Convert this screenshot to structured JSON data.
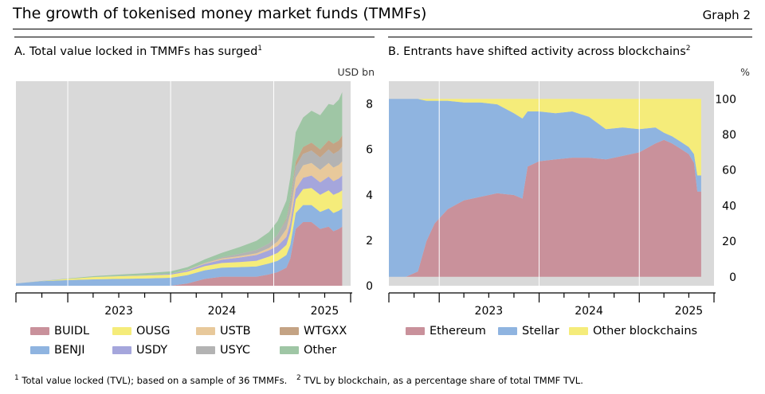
{
  "header": {
    "title": "The growth of tokenised money market funds (TMMFs)",
    "graph_label": "Graph 2"
  },
  "panel_a": {
    "title": "A. Total value locked in TMMFs has surged",
    "title_sup": "1",
    "unit": "USD bn"
  },
  "panel_b": {
    "title": "B. Entrants have shifted activity across blockchains",
    "title_sup": "2",
    "unit": "%"
  },
  "footnotes": {
    "n1_mark": "1",
    "n1_text": "Total value locked (TVL); based on a sample of 36 TMMFs.",
    "n2_mark": "2",
    "n2_text": "TVL by blockchain, as a percentage share of total TMMF TVL."
  },
  "colors": {
    "BUIDL": "#c9919b",
    "BENJI": "#8fb4e0",
    "OUSG": "#f5ec7a",
    "USDY": "#a5a6dc",
    "USTB": "#e8c99b",
    "USYC": "#b3b3b3",
    "WTGXX": "#c4a384",
    "Other": "#9fc6a5",
    "Ethereum": "#c9919b",
    "Stellar": "#8fb4e0",
    "Other blockchains": "#f5ec7a",
    "plot_bg": "#d9d9d9"
  },
  "chart_data": [
    {
      "type": "area",
      "stacked": true,
      "title": "A. Total value locked in TMMFs has surged",
      "ylabel": "USD bn",
      "ylim": [
        0,
        9
      ],
      "yticks": [
        0,
        2,
        4,
        6,
        8
      ],
      "ytick_labels": [
        "0",
        "2",
        "4",
        "6",
        "8"
      ],
      "xlim": [
        "2022-07-01",
        "2025-10-01"
      ],
      "xtick_labels": [
        "2023",
        "2024",
        "2025"
      ],
      "grid": false,
      "legend_position": "bottom",
      "x": [
        "2022-07-01",
        "2022-10-01",
        "2023-01-01",
        "2023-04-01",
        "2023-07-01",
        "2023-10-01",
        "2024-01-01",
        "2024-03-01",
        "2024-05-01",
        "2024-07-01",
        "2024-09-01",
        "2024-11-01",
        "2024-12-15",
        "2025-01-15",
        "2025-02-15",
        "2025-03-01",
        "2025-03-20",
        "2025-04-15",
        "2025-05-15",
        "2025-06-15",
        "2025-07-15",
        "2025-08-01",
        "2025-08-20",
        "2025-09-01"
      ],
      "series": [
        {
          "name": "BUIDL",
          "values": [
            0,
            0,
            0,
            0,
            0,
            0,
            0,
            0.1,
            0.3,
            0.4,
            0.4,
            0.4,
            0.5,
            0.6,
            0.8,
            1.2,
            2.5,
            2.8,
            2.8,
            2.5,
            2.6,
            2.4,
            2.5,
            2.6
          ]
        },
        {
          "name": "BENJI",
          "values": [
            0.1,
            0.2,
            0.25,
            0.28,
            0.3,
            0.32,
            0.35,
            0.37,
            0.38,
            0.4,
            0.42,
            0.45,
            0.48,
            0.5,
            0.55,
            0.6,
            0.7,
            0.75,
            0.75,
            0.75,
            0.8,
            0.8,
            0.8,
            0.8
          ]
        },
        {
          "name": "OUSG",
          "values": [
            0,
            0,
            0.05,
            0.1,
            0.12,
            0.13,
            0.14,
            0.15,
            0.18,
            0.2,
            0.22,
            0.25,
            0.3,
            0.35,
            0.45,
            0.55,
            0.6,
            0.7,
            0.75,
            0.75,
            0.8,
            0.8,
            0.8,
            0.8
          ]
        },
        {
          "name": "USDY",
          "values": [
            0,
            0,
            0,
            0,
            0.01,
            0.02,
            0.04,
            0.06,
            0.1,
            0.15,
            0.2,
            0.25,
            0.28,
            0.3,
            0.35,
            0.4,
            0.45,
            0.5,
            0.55,
            0.55,
            0.6,
            0.6,
            0.62,
            0.65
          ]
        },
        {
          "name": "USTB",
          "values": [
            0,
            0,
            0,
            0,
            0,
            0,
            0,
            0.02,
            0.03,
            0.05,
            0.06,
            0.08,
            0.1,
            0.2,
            0.35,
            0.45,
            0.5,
            0.55,
            0.55,
            0.55,
            0.6,
            0.6,
            0.6,
            0.62
          ]
        },
        {
          "name": "USYC",
          "values": [
            0,
            0,
            0,
            0,
            0,
            0,
            0,
            0,
            0.02,
            0.05,
            0.1,
            0.15,
            0.2,
            0.3,
            0.4,
            0.45,
            0.5,
            0.5,
            0.55,
            0.55,
            0.6,
            0.6,
            0.62,
            0.65
          ]
        },
        {
          "name": "WTGXX",
          "values": [
            0,
            0,
            0,
            0,
            0,
            0,
            0,
            0,
            0,
            0,
            0,
            0,
            0,
            0,
            0.05,
            0.1,
            0.2,
            0.3,
            0.35,
            0.35,
            0.4,
            0.45,
            0.45,
            0.5
          ]
        },
        {
          "name": "Other",
          "values": [
            0,
            0.01,
            0.02,
            0.04,
            0.06,
            0.08,
            0.1,
            0.12,
            0.15,
            0.2,
            0.3,
            0.4,
            0.5,
            0.6,
            0.8,
            1.0,
            1.3,
            1.3,
            1.4,
            1.5,
            1.6,
            1.7,
            1.8,
            1.9
          ]
        }
      ]
    },
    {
      "type": "area",
      "stacked": true,
      "title": "B. Entrants have shifted activity across blockchains",
      "ylabel": "%",
      "ylim": [
        -5,
        110
      ],
      "yticks": [
        0,
        20,
        40,
        60,
        80,
        100
      ],
      "ytick_labels": [
        "0",
        "20",
        "40",
        "60",
        "80",
        "100"
      ],
      "xlim": [
        "2022-07-01",
        "2025-10-01"
      ],
      "xtick_labels": [
        "2023",
        "2024",
        "2025"
      ],
      "grid": false,
      "legend_position": "bottom",
      "x": [
        "2022-07-01",
        "2022-09-01",
        "2022-10-15",
        "2022-11-15",
        "2022-12-15",
        "2023-02-01",
        "2023-04-01",
        "2023-06-01",
        "2023-08-01",
        "2023-10-01",
        "2023-11-01",
        "2023-11-20",
        "2024-01-01",
        "2024-03-01",
        "2024-05-01",
        "2024-07-01",
        "2024-09-01",
        "2024-11-01",
        "2025-01-01",
        "2025-03-01",
        "2025-04-01",
        "2025-05-01",
        "2025-06-01",
        "2025-07-01",
        "2025-07-20",
        "2025-08-01",
        "2025-08-15"
      ],
      "series": [
        {
          "name": "Ethereum",
          "values": [
            0,
            0,
            3,
            20,
            30,
            38,
            43,
            45,
            47,
            46,
            44,
            62,
            65,
            66,
            67,
            67,
            66,
            68,
            70,
            75,
            77,
            75,
            72,
            69,
            64,
            48,
            48
          ]
        },
        {
          "name": "Stellar",
          "values": [
            100,
            100,
            97,
            79,
            69,
            61,
            55,
            53,
            50,
            46,
            45,
            31,
            28,
            26,
            26,
            23,
            17,
            16,
            13,
            9,
            4,
            4,
            4,
            4,
            5,
            9,
            9
          ]
        },
        {
          "name": "Other blockchains",
          "values": [
            0,
            0,
            0,
            1,
            1,
            1,
            2,
            2,
            3,
            8,
            11,
            7,
            7,
            8,
            7,
            10,
            17,
            16,
            17,
            16,
            19,
            21,
            24,
            27,
            31,
            43,
            43
          ]
        }
      ]
    }
  ],
  "legend_a": [
    {
      "key": "BUIDL",
      "label": "BUIDL"
    },
    {
      "key": "OUSG",
      "label": "OUSG"
    },
    {
      "key": "USTB",
      "label": "USTB"
    },
    {
      "key": "WTGXX",
      "label": "WTGXX"
    },
    {
      "key": "BENJI",
      "label": "BENJI"
    },
    {
      "key": "USDY",
      "label": "USDY"
    },
    {
      "key": "USYC",
      "label": "USYC"
    },
    {
      "key": "Other",
      "label": "Other"
    }
  ],
  "legend_b": [
    {
      "key": "Ethereum",
      "label": "Ethereum"
    },
    {
      "key": "Stellar",
      "label": "Stellar"
    },
    {
      "key": "Other blockchains",
      "label": "Other blockchains"
    }
  ]
}
